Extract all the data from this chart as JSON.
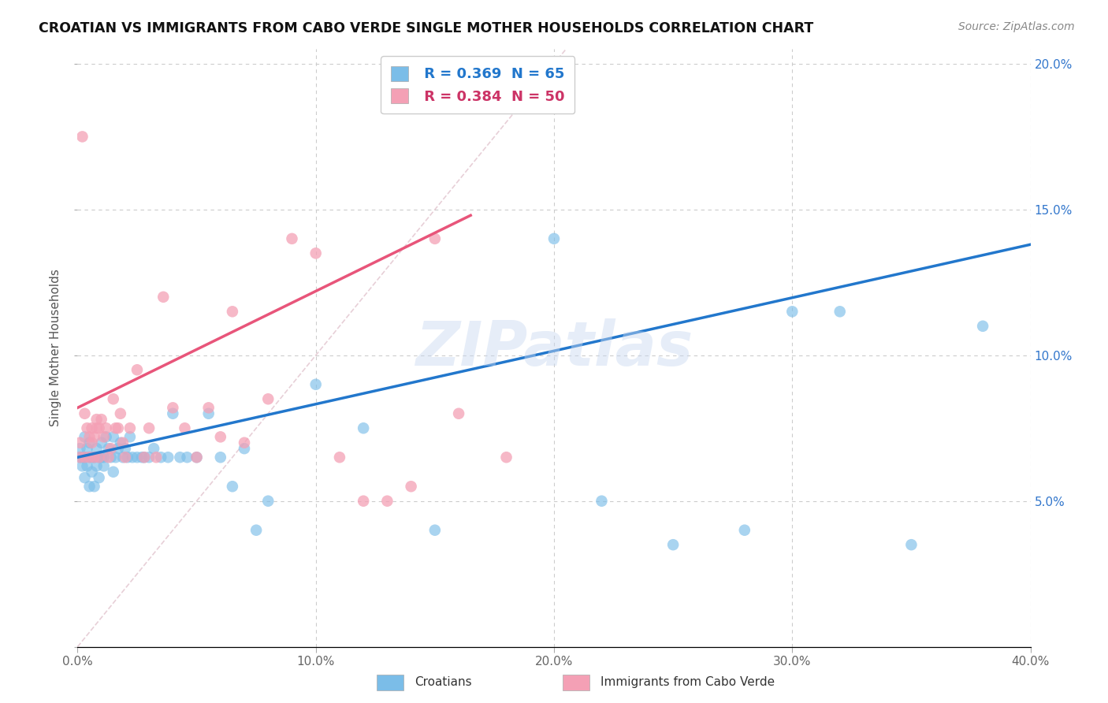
{
  "title": "CROATIAN VS IMMIGRANTS FROM CABO VERDE SINGLE MOTHER HOUSEHOLDS CORRELATION CHART",
  "source": "Source: ZipAtlas.com",
  "ylabel": "Single Mother Households",
  "xlabel_croatians": "Croatians",
  "xlabel_cabo_verde": "Immigrants from Cabo Verde",
  "croatian_R": 0.369,
  "croatian_N": 65,
  "cabo_verde_R": 0.384,
  "cabo_verde_N": 50,
  "xlim": [
    0.0,
    0.4
  ],
  "ylim": [
    0.0,
    0.205
  ],
  "x_ticks": [
    0.0,
    0.1,
    0.2,
    0.3,
    0.4
  ],
  "y_ticks": [
    0.0,
    0.05,
    0.1,
    0.15,
    0.2
  ],
  "x_tick_labels": [
    "0.0%",
    "10.0%",
    "20.0%",
    "30.0%",
    "40.0%"
  ],
  "y_tick_labels_right": [
    "",
    "5.0%",
    "10.0%",
    "15.0%",
    "20.0%"
  ],
  "blue_color": "#7bbde8",
  "pink_color": "#f4a0b5",
  "blue_line_color": "#2277cc",
  "pink_line_color": "#e8557a",
  "watermark": "ZIPatlas",
  "blue_line_x0": 0.0,
  "blue_line_y0": 0.065,
  "blue_line_x1": 0.4,
  "blue_line_y1": 0.138,
  "pink_line_x0": 0.0,
  "pink_line_y0": 0.082,
  "pink_line_x1": 0.165,
  "pink_line_y1": 0.148,
  "croatian_x": [
    0.001,
    0.001,
    0.002,
    0.002,
    0.003,
    0.003,
    0.003,
    0.004,
    0.004,
    0.005,
    0.005,
    0.005,
    0.006,
    0.006,
    0.007,
    0.007,
    0.008,
    0.008,
    0.009,
    0.009,
    0.01,
    0.01,
    0.011,
    0.011,
    0.012,
    0.013,
    0.014,
    0.015,
    0.015,
    0.016,
    0.017,
    0.018,
    0.019,
    0.02,
    0.021,
    0.022,
    0.023,
    0.025,
    0.027,
    0.028,
    0.03,
    0.032,
    0.035,
    0.038,
    0.04,
    0.043,
    0.046,
    0.05,
    0.055,
    0.06,
    0.065,
    0.07,
    0.075,
    0.08,
    0.1,
    0.12,
    0.15,
    0.2,
    0.22,
    0.25,
    0.28,
    0.3,
    0.32,
    0.35,
    0.38
  ],
  "croatian_y": [
    0.065,
    0.068,
    0.062,
    0.065,
    0.058,
    0.065,
    0.072,
    0.062,
    0.068,
    0.055,
    0.065,
    0.07,
    0.06,
    0.065,
    0.055,
    0.065,
    0.062,
    0.068,
    0.065,
    0.058,
    0.065,
    0.07,
    0.062,
    0.065,
    0.072,
    0.068,
    0.065,
    0.06,
    0.072,
    0.065,
    0.068,
    0.07,
    0.065,
    0.068,
    0.065,
    0.072,
    0.065,
    0.065,
    0.065,
    0.065,
    0.065,
    0.068,
    0.065,
    0.065,
    0.08,
    0.065,
    0.065,
    0.065,
    0.08,
    0.065,
    0.055,
    0.068,
    0.04,
    0.05,
    0.09,
    0.075,
    0.04,
    0.14,
    0.05,
    0.035,
    0.04,
    0.115,
    0.115,
    0.035,
    0.11
  ],
  "cabo_verde_x": [
    0.001,
    0.001,
    0.002,
    0.003,
    0.003,
    0.004,
    0.005,
    0.005,
    0.006,
    0.006,
    0.007,
    0.007,
    0.008,
    0.008,
    0.009,
    0.009,
    0.01,
    0.011,
    0.012,
    0.013,
    0.014,
    0.015,
    0.016,
    0.017,
    0.018,
    0.019,
    0.02,
    0.022,
    0.025,
    0.028,
    0.03,
    0.033,
    0.036,
    0.04,
    0.045,
    0.05,
    0.055,
    0.06,
    0.065,
    0.07,
    0.08,
    0.09,
    0.1,
    0.11,
    0.12,
    0.13,
    0.14,
    0.15,
    0.16,
    0.18
  ],
  "cabo_verde_y": [
    0.065,
    0.07,
    0.175,
    0.08,
    0.065,
    0.075,
    0.065,
    0.072,
    0.075,
    0.07,
    0.065,
    0.072,
    0.075,
    0.078,
    0.065,
    0.075,
    0.078,
    0.072,
    0.075,
    0.065,
    0.068,
    0.085,
    0.075,
    0.075,
    0.08,
    0.07,
    0.065,
    0.075,
    0.095,
    0.065,
    0.075,
    0.065,
    0.12,
    0.082,
    0.075,
    0.065,
    0.082,
    0.072,
    0.115,
    0.07,
    0.085,
    0.14,
    0.135,
    0.065,
    0.05,
    0.05,
    0.055,
    0.14,
    0.08,
    0.065
  ]
}
